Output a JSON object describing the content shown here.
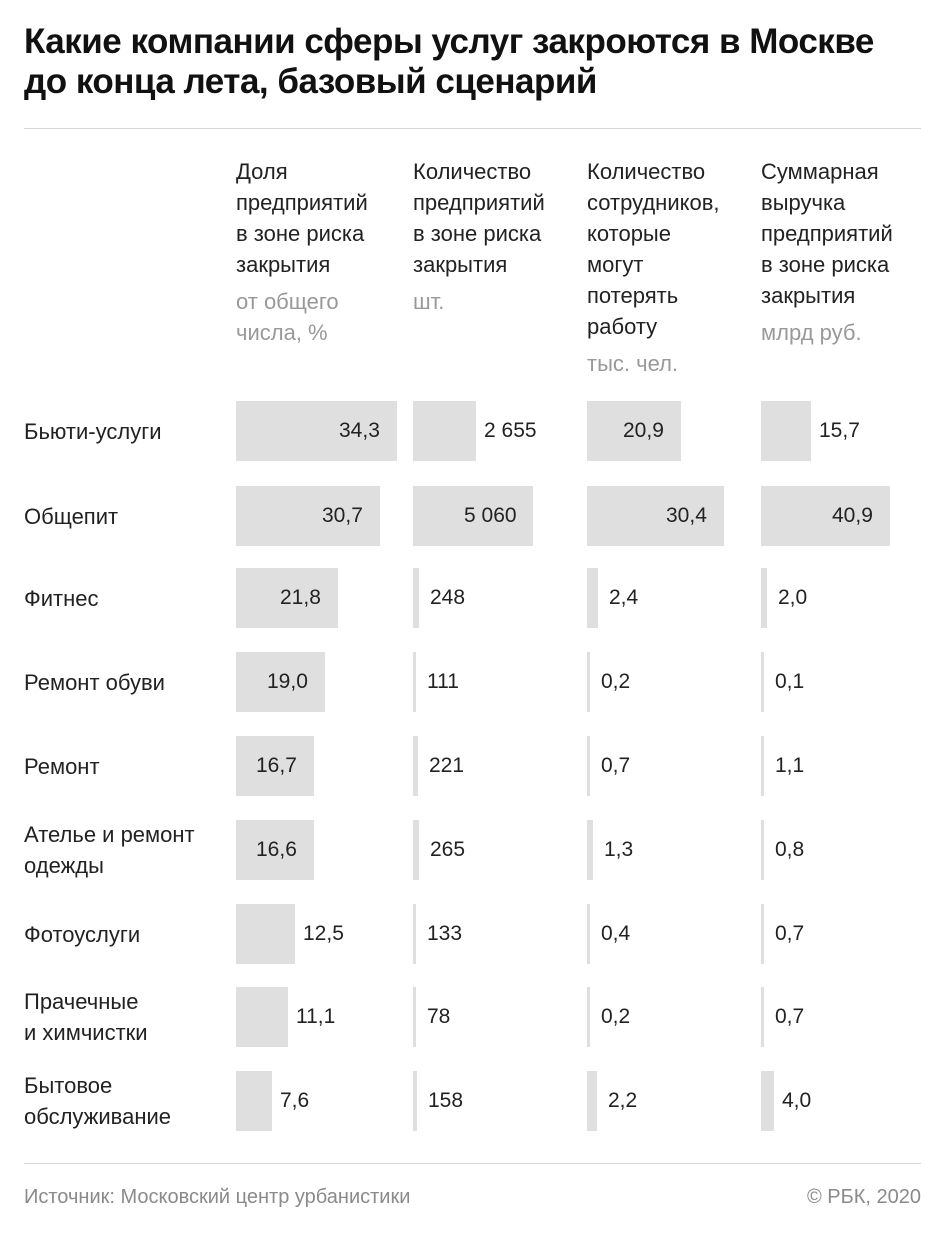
{
  "title": "Какие компании сферы услуг закроются в Москве до конца лета, базовый сценарий",
  "footer": {
    "source": "Источник: Московский центр урбанистики",
    "copyright": "© РБК, 2020"
  },
  "colors": {
    "bar": "#dfdfdf",
    "text": "#222222",
    "muted": "#999999",
    "rule": "#d6d6d6"
  },
  "chart_data": {
    "type": "table",
    "columns": [
      {
        "label": "Доля\nпредприятий\nв зоне риска\nзакрытия",
        "unit": "от общего\nчисла, %"
      },
      {
        "label": "Количество\nпредприятий\nв зоне риска\nзакрытия",
        "unit": "шт."
      },
      {
        "label": "Количество\nсотрудников,\nкоторые\nмогут\nпотерять\nработу",
        "unit": "тыс. чел."
      },
      {
        "label": "Суммарная\nвыручка\nпредприятий\nв зоне риска\nзакрытия",
        "unit": "млрд руб."
      }
    ],
    "rows": [
      {
        "name": "Бьюти-услуги",
        "values": [
          34.3,
          2655,
          20.9,
          15.7
        ],
        "labels": [
          "34,3",
          "2 655",
          "20,9",
          "15,7"
        ]
      },
      {
        "name": "Общепит",
        "values": [
          30.7,
          5060,
          30.4,
          40.9
        ],
        "labels": [
          "30,7",
          "5 060",
          "30,4",
          "40,9"
        ]
      },
      {
        "name": "Фитнес",
        "values": [
          21.8,
          248,
          2.4,
          2.0
        ],
        "labels": [
          "21,8",
          "248",
          "2,4",
          "2,0"
        ]
      },
      {
        "name": "Ремонт обуви",
        "values": [
          19.0,
          111,
          0.2,
          0.1
        ],
        "labels": [
          "19,0",
          "111",
          "0,2",
          "0,1"
        ]
      },
      {
        "name": "Ремонт",
        "values": [
          16.7,
          221,
          0.7,
          1.1
        ],
        "labels": [
          "16,7",
          "221",
          "0,7",
          "1,1"
        ]
      },
      {
        "name": "Ателье и ремонт\nодежды",
        "values": [
          16.6,
          265,
          1.3,
          0.8
        ],
        "labels": [
          "16,6",
          "265",
          "1,3",
          "0,8"
        ]
      },
      {
        "name": "Фотоуслуги",
        "values": [
          12.5,
          133,
          0.4,
          0.7
        ],
        "labels": [
          "12,5",
          "133",
          "0,4",
          "0,7"
        ]
      },
      {
        "name": "Прачечные\nи химчистки",
        "values": [
          11.1,
          78,
          0.2,
          0.7
        ],
        "labels": [
          "11,1",
          "78",
          "0,2",
          "0,7"
        ]
      },
      {
        "name": "Бытовое\nобслуживание",
        "values": [
          7.6,
          158,
          2.2,
          4.0
        ],
        "labels": [
          "7,6",
          "158",
          "2,2",
          "4,0"
        ]
      }
    ]
  }
}
